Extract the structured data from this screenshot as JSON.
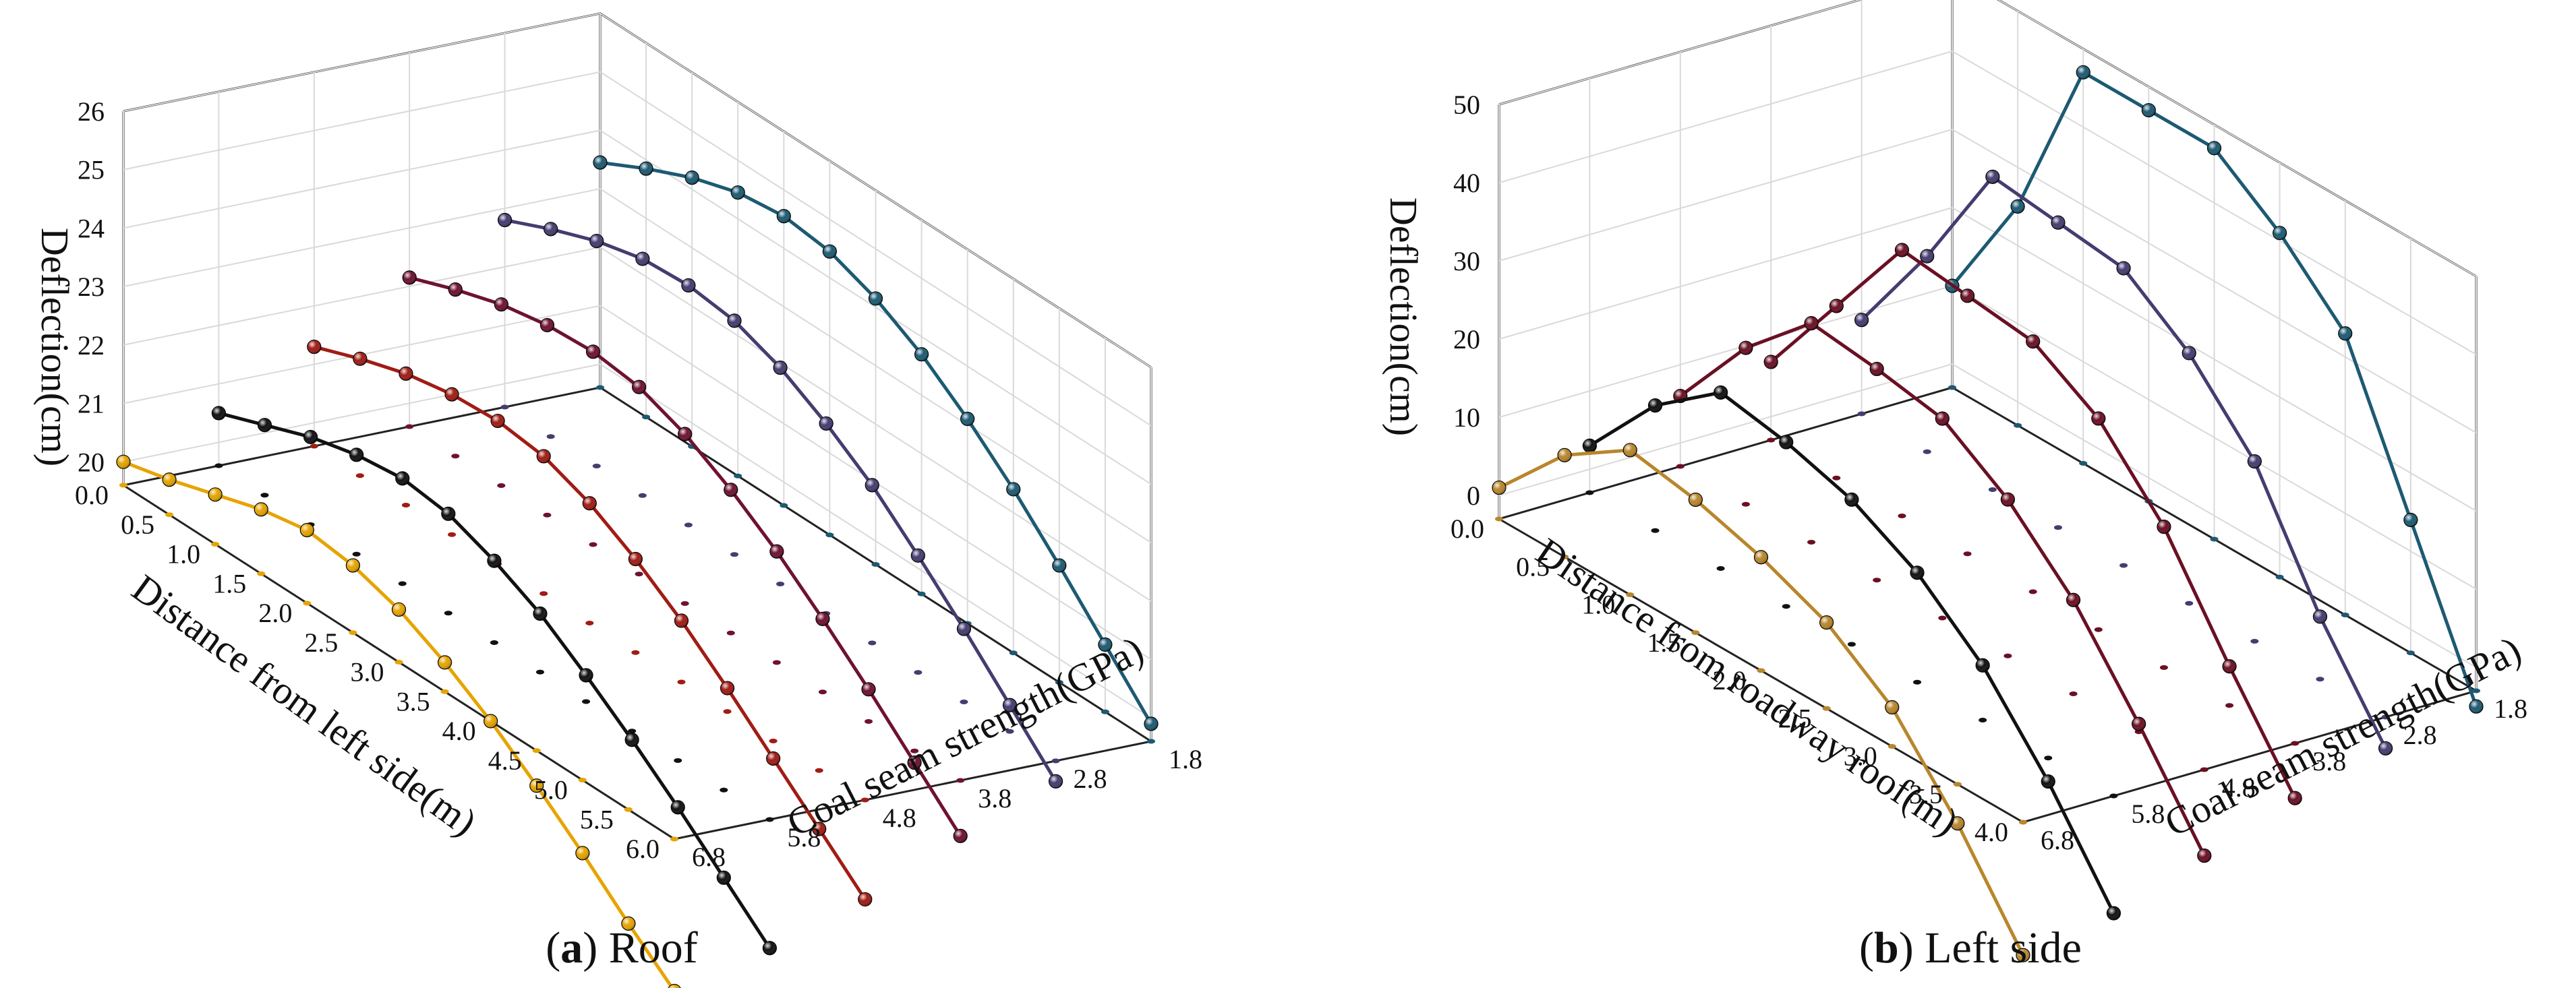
{
  "chart_data": [
    {
      "type": "line3d",
      "panel_letter": "a",
      "panel_title": "Roof",
      "xlabel": "Distance from left side(m)",
      "ylabel": "Coal seam strength(GPa)",
      "zlabel": "Deflection(cm)",
      "x_ticks": [
        "0.0",
        "0.5",
        "1.0",
        "1.5",
        "2.0",
        "2.5",
        "3.0",
        "3.5",
        "4.0",
        "4.5",
        "5.0",
        "5.5",
        "6.0"
      ],
      "y_ticks": [
        "1.8",
        "2.8",
        "3.8",
        "4.8",
        "5.8",
        "6.8"
      ],
      "z_ticks": [
        "20",
        "21",
        "22",
        "23",
        "24",
        "25",
        "26"
      ],
      "x": [
        0,
        0.5,
        1,
        1.5,
        2,
        2.5,
        3,
        3.5,
        4,
        4.5,
        5,
        5.5,
        6
      ],
      "zlim": [
        19.6,
        26
      ],
      "series": [
        {
          "name": "6.8 GPa",
          "strength": 6.8,
          "color": "#e6a400",
          "values": [
            20.0,
            20.2,
            20.45,
            20.7,
            20.85,
            20.75,
            20.5,
            20.1,
            19.6,
            19.0,
            18.35,
            17.65,
            17.0
          ]
        },
        {
          "name": "5.8 GPa",
          "strength": 5.8,
          "color": "#111111",
          "values": [
            20.5,
            20.8,
            21.1,
            21.3,
            21.4,
            21.3,
            21.0,
            20.6,
            20.05,
            19.45,
            18.8,
            18.1,
            17.4
          ]
        },
        {
          "name": "4.8 GPa",
          "strength": 4.8,
          "color": "#a01c14",
          "values": [
            21.3,
            21.6,
            21.85,
            22.0,
            22.05,
            21.95,
            21.65,
            21.2,
            20.65,
            20.0,
            19.3,
            18.6,
            17.9
          ]
        },
        {
          "name": "3.8 GPa",
          "strength": 3.8,
          "color": "#6e1230",
          "values": [
            22.15,
            22.45,
            22.7,
            22.85,
            22.9,
            22.8,
            22.5,
            22.05,
            21.5,
            20.85,
            20.15,
            19.4,
            18.65
          ]
        },
        {
          "name": "2.8 GPa",
          "strength": 2.8,
          "color": "#463c70",
          "values": [
            22.8,
            23.15,
            23.45,
            23.65,
            23.7,
            23.6,
            23.3,
            22.85,
            22.3,
            21.6,
            20.85,
            20.05,
            19.25
          ]
        },
        {
          "name": "1.8 GPa",
          "strength": 1.8,
          "color": "#1d5a72",
          "values": [
            23.45,
            23.85,
            24.2,
            24.45,
            24.55,
            24.45,
            24.15,
            23.7,
            23.1,
            22.4,
            21.6,
            20.75,
            19.9
          ]
        }
      ]
    },
    {
      "type": "line3d",
      "panel_letter": "b",
      "panel_title": "Left side",
      "xlabel": "Distance from roadway roof(m)",
      "ylabel": "Coal seam strength(GPa)",
      "zlabel": "Deflection(cm)",
      "x_ticks": [
        "0.0",
        "0.5",
        "1.0",
        "1.5",
        "2.0",
        "2.5",
        "3.0",
        "3.5",
        "4.0"
      ],
      "y_ticks": [
        "1.8",
        "2.8",
        "3.8",
        "4.8",
        "5.8",
        "6.8"
      ],
      "z_ticks": [
        "0",
        "10",
        "20",
        "30",
        "40",
        "50"
      ],
      "x": [
        0,
        0.5,
        1,
        1.5,
        2,
        2.5,
        3,
        3.5,
        4
      ],
      "zlim": [
        -3,
        50
      ],
      "series": [
        {
          "name": "6.8 GPa",
          "strength": 6.8,
          "color": "#b8862c",
          "values": [
            1,
            10,
            15.5,
            14,
            11.5,
            8,
            2,
            -8,
            -20
          ]
        },
        {
          "name": "5.8 GPa",
          "strength": 5.8,
          "color": "#111111",
          "values": [
            3,
            13,
            19.5,
            18,
            15.5,
            11,
            4,
            -6,
            -18
          ]
        },
        {
          "name": "4.8 GPa",
          "strength": 4.8,
          "color": "#6a1024",
          "values": [
            6,
            17,
            25,
            24,
            22.5,
            17,
            9,
            -2,
            -14
          ]
        },
        {
          "name": "3.8 GPa",
          "strength": 3.8,
          "color": "#6a1024",
          "values": [
            7,
            19,
            31,
            30,
            29,
            24,
            15,
            2,
            -10
          ]
        },
        {
          "name": "2.8 GPa",
          "strength": 2.8,
          "color": "#463c70",
          "values": [
            9,
            22,
            37,
            36,
            35,
            29,
            20,
            5,
            -7
          ]
        },
        {
          "name": "1.8 GPa",
          "strength": 1.8,
          "color": "#1d5a72",
          "values": [
            10,
            25,
            47,
            47,
            47,
            41,
            33,
            14,
            -5
          ]
        }
      ]
    }
  ]
}
